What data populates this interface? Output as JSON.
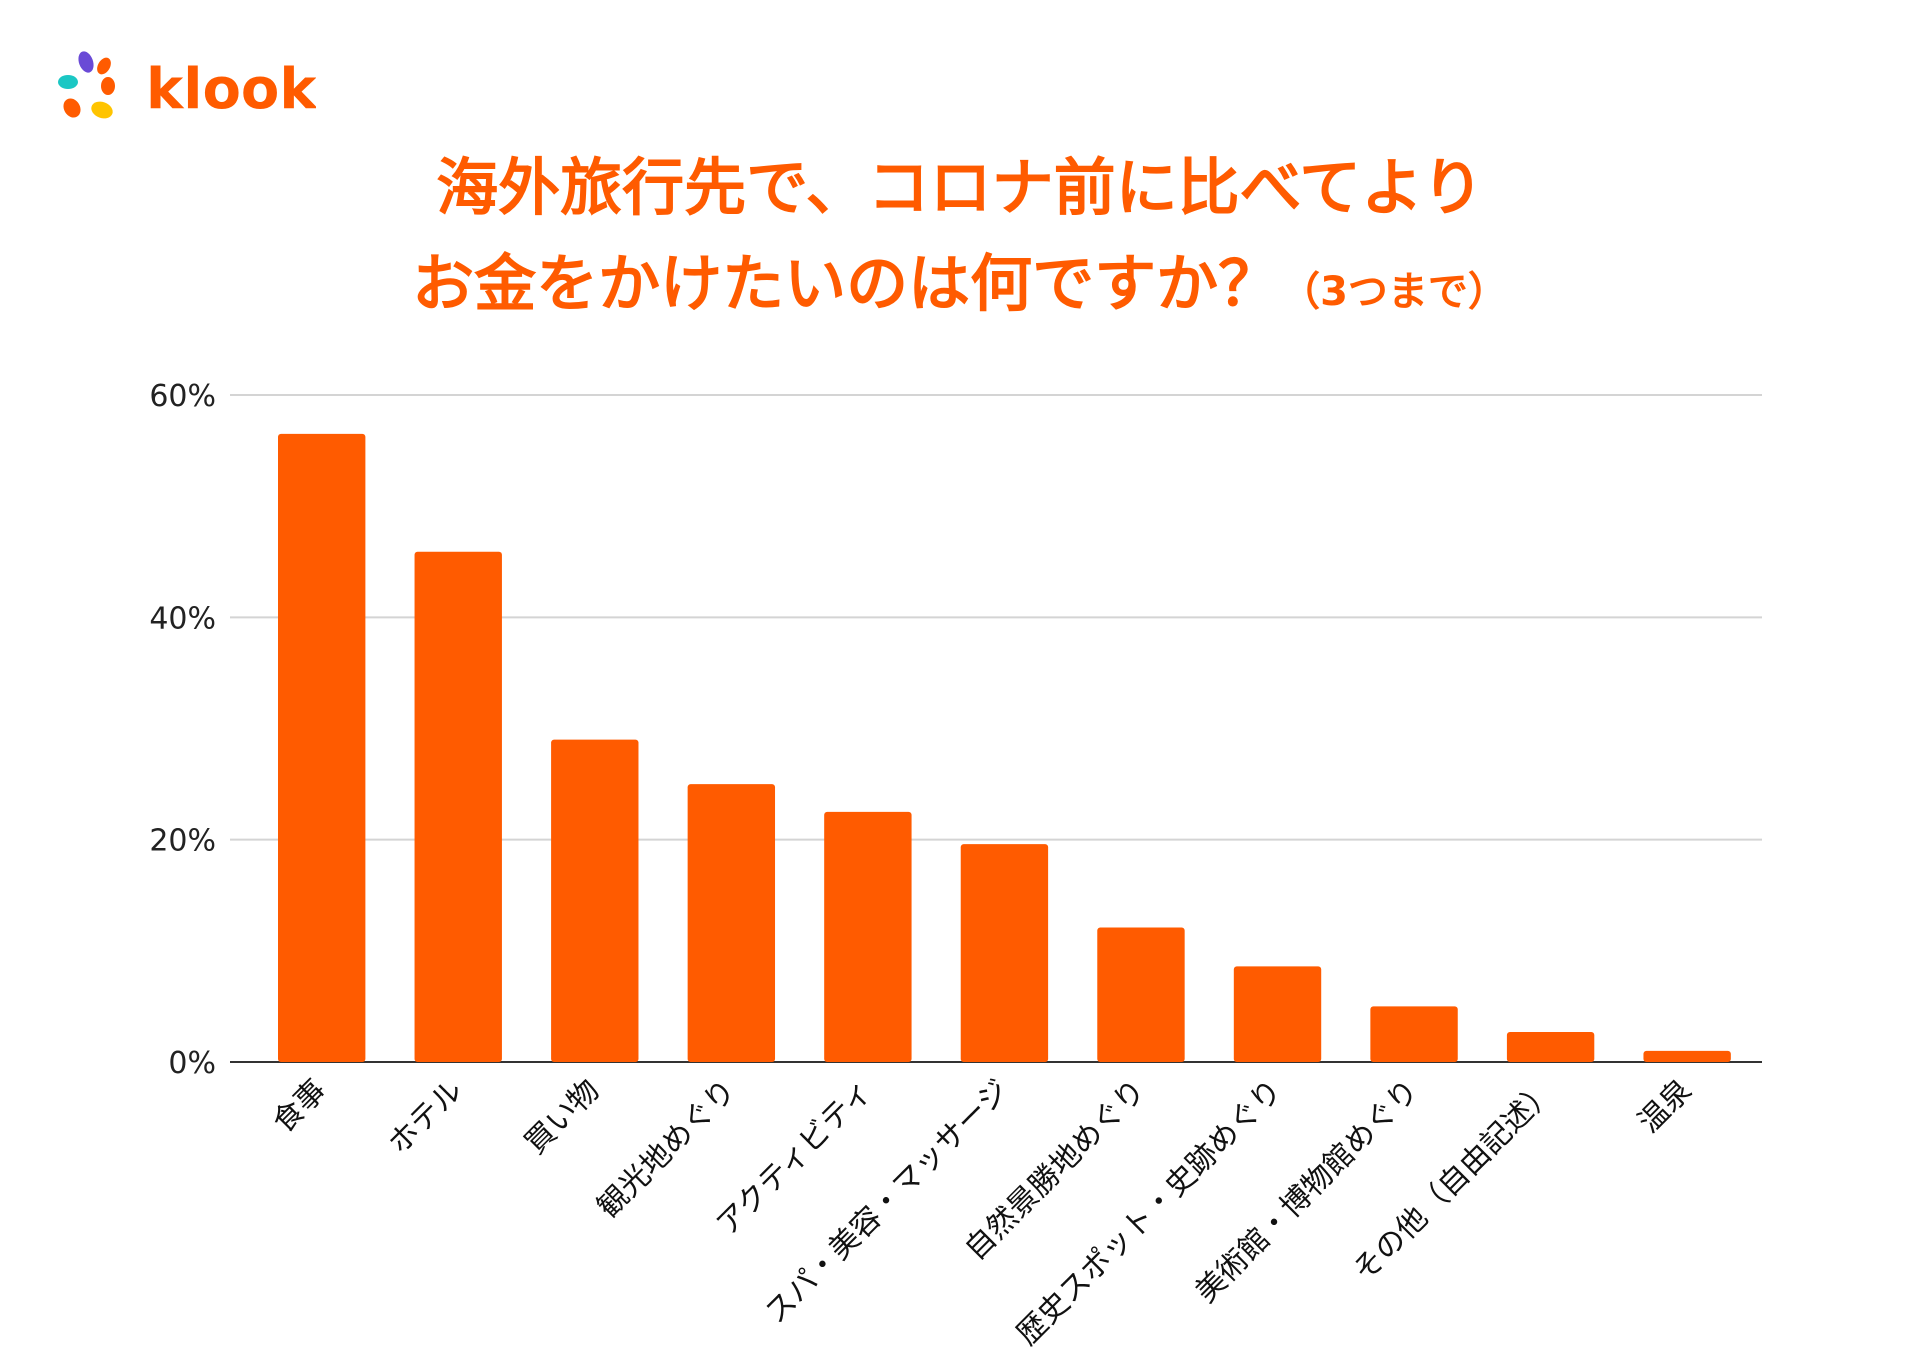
{
  "brand": {
    "name": "klook"
  },
  "title": {
    "line1": "海外旅行先で、コロナ前に比べてより",
    "line2": "お金をかけたいのは何ですか？",
    "suffix": "（3つまで）"
  },
  "colors": {
    "bar": "#ff5b00",
    "grid": "#d4d4d4",
    "axis": "#333333"
  },
  "chart_data": {
    "type": "bar",
    "categories": [
      "食事",
      "ホテル",
      "買い物",
      "観光地めぐり",
      "アクティビティ",
      "スパ・美容・マッサージ",
      "自然景勝地めぐり",
      "歴史スポット・史跡めぐり",
      "美術館・博物館めぐり",
      "その他（自由記述）",
      "温泉"
    ],
    "values": [
      56.5,
      45.9,
      29.0,
      25.0,
      22.5,
      19.6,
      12.1,
      8.6,
      5.0,
      2.7,
      1.0
    ],
    "ylim": [
      0,
      60
    ],
    "yticks": [
      0,
      20,
      40,
      60
    ],
    "ytick_labels": [
      "0%",
      "20%",
      "40%",
      "60%"
    ],
    "grid": true,
    "title": "海外旅行先で、コロナ前に比べてよりお金をかけたいのは何ですか？（3つまで）",
    "xlabel": "",
    "ylabel": ""
  }
}
